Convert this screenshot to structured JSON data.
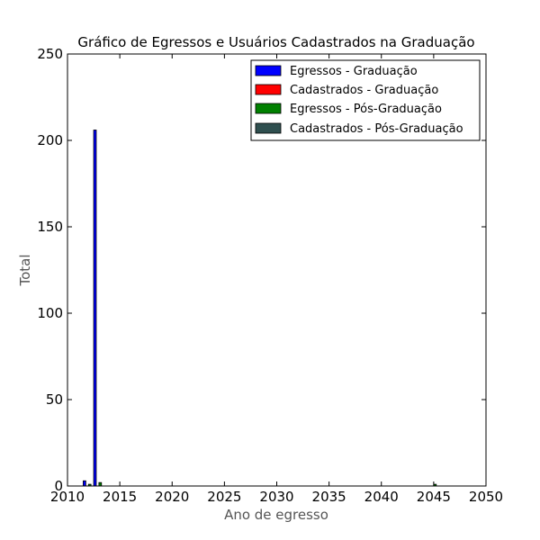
{
  "chart_data": {
    "type": "bar",
    "title": "Gráfico de Egressos e Usuários Cadastrados na Graduação",
    "xlabel": "Ano de egresso",
    "ylabel": "Total",
    "xlim": [
      2010,
      2050
    ],
    "ylim": [
      0,
      250
    ],
    "xticks": [
      2010,
      2015,
      2020,
      2025,
      2030,
      2035,
      2040,
      2045,
      2050
    ],
    "yticks": [
      0,
      50,
      100,
      150,
      200,
      250
    ],
    "grid": false,
    "legend_position": "top-right",
    "bar_width_years": 0.25,
    "series": [
      {
        "name": "Egressos - Graduação",
        "color": "#0000ff",
        "offset": -0.5,
        "points": [
          {
            "x": 2012,
            "y": 3
          },
          {
            "x": 2013,
            "y": 206
          },
          {
            "x": 2045,
            "y": 0
          }
        ]
      },
      {
        "name": "Cadastrados - Graduação",
        "color": "#ff0000",
        "offset": -0.25,
        "points": [
          {
            "x": 2012,
            "y": 0
          },
          {
            "x": 2013,
            "y": 0
          },
          {
            "x": 2045,
            "y": 0
          }
        ]
      },
      {
        "name": "Egressos - Pós-Graduação",
        "color": "#008000",
        "offset": 0,
        "points": [
          {
            "x": 2012,
            "y": 1
          },
          {
            "x": 2013,
            "y": 2
          },
          {
            "x": 2045,
            "y": 1
          }
        ]
      },
      {
        "name": "Cadastrados - Pós-Graduação",
        "color": "#2f4f4f",
        "offset": 0.25,
        "points": [
          {
            "x": 2012,
            "y": 0
          },
          {
            "x": 2013,
            "y": 0
          },
          {
            "x": 2045,
            "y": 0
          }
        ]
      }
    ]
  }
}
